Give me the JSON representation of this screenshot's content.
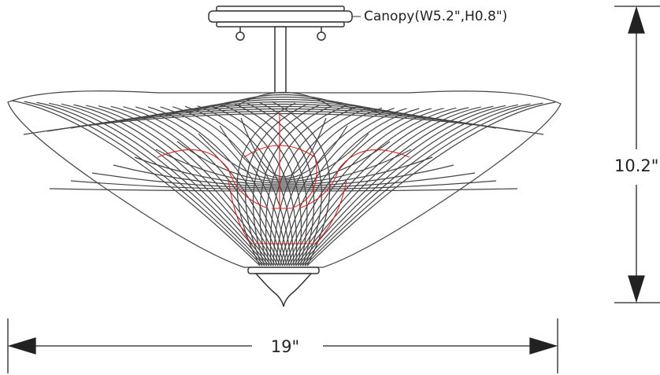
{
  "canopy_label": "Canopy(W5.2\",H0.8\")",
  "height_label": "10.2\"",
  "width_label": "19\""
}
